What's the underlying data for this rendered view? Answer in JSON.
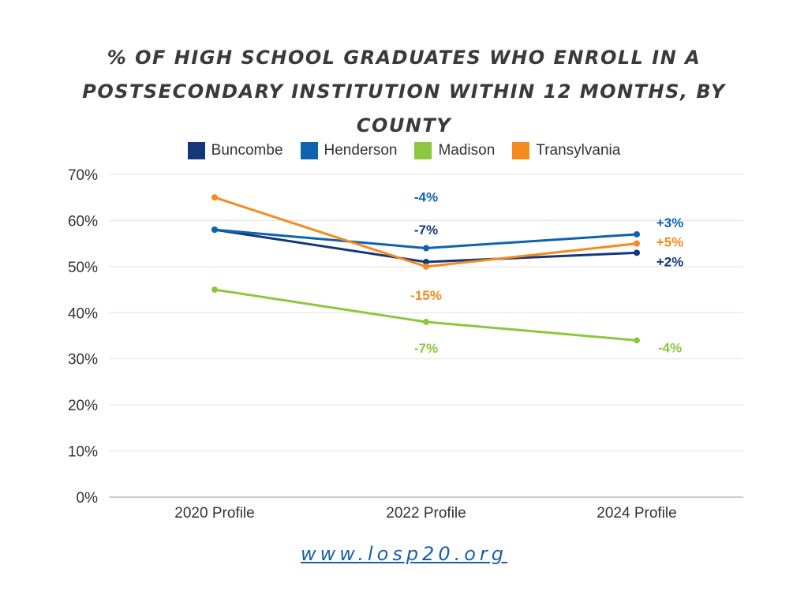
{
  "chart_data": {
    "type": "line",
    "title": "% OF HIGH SCHOOL GRADUATES WHO ENROLL IN A POSTSECONDARY INSTITUTION WITHIN 12 MONTHS, BY COUNTY",
    "categories": [
      "2020 Profile",
      "2022 Profile",
      "2024 Profile"
    ],
    "y_ticks": [
      "0%",
      "10%",
      "20%",
      "30%",
      "40%",
      "50%",
      "60%",
      "70%"
    ],
    "ylim": [
      0,
      70
    ],
    "grid": true,
    "legend_position": "top",
    "series": [
      {
        "name": "Buncombe",
        "color": "#14377a",
        "values": [
          58,
          51,
          53
        ],
        "labels": [
          "",
          "-7%",
          "+2%"
        ]
      },
      {
        "name": "Henderson",
        "color": "#0d63ad",
        "values": [
          58,
          54,
          57
        ],
        "labels": [
          "",
          "-4%",
          "+3%"
        ]
      },
      {
        "name": "Madison",
        "color": "#8dc63f",
        "values": [
          45,
          38,
          34
        ],
        "labels": [
          "",
          "-7%",
          "-4%"
        ]
      },
      {
        "name": "Transylvania",
        "color": "#f58a1f",
        "values": [
          65,
          50,
          55
        ],
        "labels": [
          "",
          "-15%",
          "+5%"
        ]
      }
    ]
  },
  "footer": {
    "url": "www.losp20.org"
  }
}
